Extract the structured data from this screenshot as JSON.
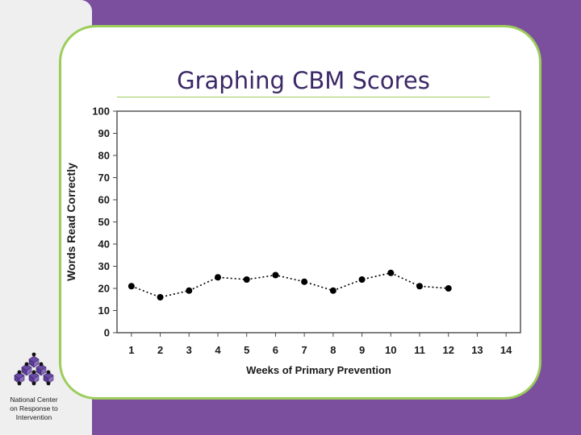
{
  "slide": {
    "title": "Graphing CBM Scores",
    "colors": {
      "frame": "#7b4f9d",
      "border": "#9ccd5b",
      "title": "#3b2867",
      "panel": "#efefef"
    }
  },
  "logo": {
    "icon": "stacked-cubes-logo-icon",
    "lines": [
      "National Center",
      "on Response to",
      "Intervention"
    ]
  },
  "chart_data": {
    "type": "line",
    "title": "",
    "xlabel": "Weeks of Primary Prevention",
    "ylabel": "Words Read Correctly",
    "xlim": [
      0.5,
      14.5
    ],
    "ylim": [
      0,
      100
    ],
    "x_ticks": [
      1,
      2,
      3,
      4,
      5,
      6,
      7,
      8,
      9,
      10,
      11,
      12,
      13,
      14
    ],
    "y_ticks": [
      0,
      10,
      20,
      30,
      40,
      50,
      60,
      70,
      80,
      90,
      100
    ],
    "grid": false,
    "legend": "none",
    "series": [
      {
        "x": [
          1,
          2,
          3,
          4,
          5,
          6,
          7,
          8,
          9,
          10,
          11,
          12
        ],
        "values": [
          21,
          16,
          19,
          25,
          24,
          26,
          23,
          19,
          24,
          27,
          21,
          20
        ],
        "style": "dotted",
        "color": "#000000"
      }
    ]
  }
}
